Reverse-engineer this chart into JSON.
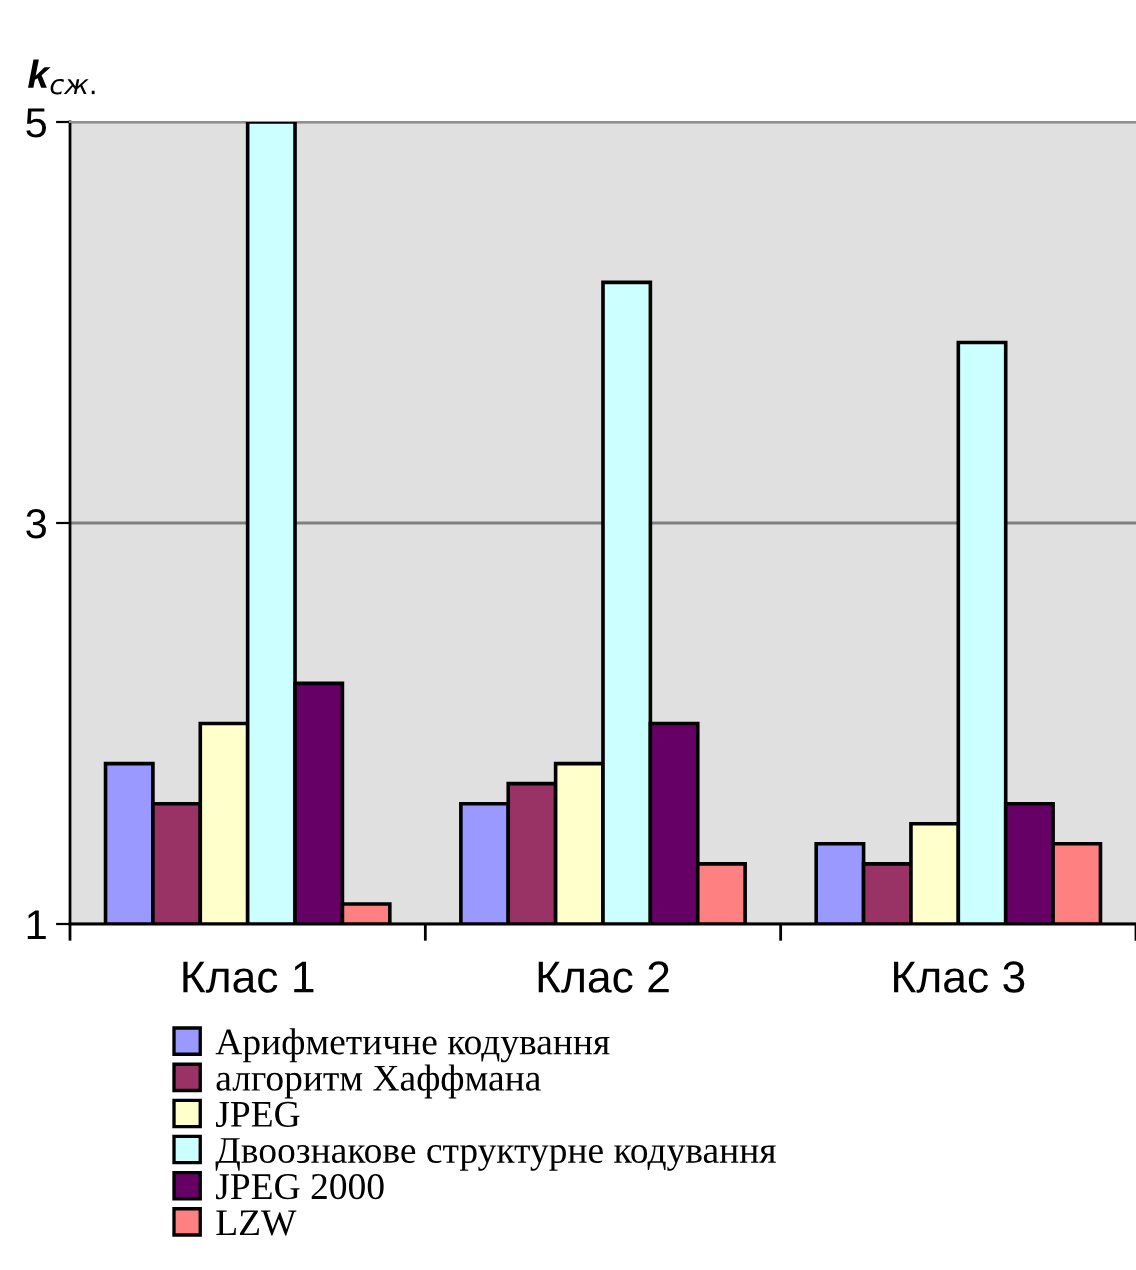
{
  "chart_data": {
    "type": "bar",
    "ylabel": "k$_{сж.}$",
    "categories": [
      "Клас 1",
      "Клас 2",
      "Клас 3"
    ],
    "series": [
      {
        "name": "Арифметичне кодування",
        "color": "#9999ff",
        "values": [
          1.8,
          1.6,
          1.4
        ]
      },
      {
        "name": "алгоритм Хаффмана",
        "color": "#993366",
        "values": [
          1.6,
          1.7,
          1.3
        ]
      },
      {
        "name": "JPEG",
        "color": "#ffffcc",
        "values": [
          2.0,
          1.8,
          1.5
        ]
      },
      {
        "name": "Двоознакове структурне кодування",
        "color": "#ccffff",
        "values": [
          5.0,
          4.2,
          3.9
        ]
      },
      {
        "name": "JPEG 2000",
        "color": "#660066",
        "values": [
          2.2,
          2.0,
          1.6
        ]
      },
      {
        "name": "LZW",
        "color": "#ff8080",
        "values": [
          1.1,
          1.3,
          1.4
        ]
      }
    ],
    "ylim": [
      1,
      5
    ],
    "yticks": [
      1,
      3,
      5
    ],
    "grid": "y",
    "legend": "bottom"
  }
}
